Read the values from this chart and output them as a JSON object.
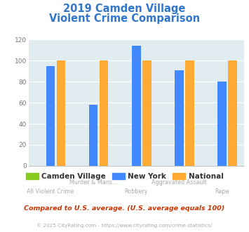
{
  "title_line1": "2019 Camden Village",
  "title_line2": "Violent Crime Comparison",
  "title_color": "#3377cc",
  "categories": [
    "All Violent Crime",
    "Murder & Mans...",
    "Robbery",
    "Aggravated Assault",
    "Rape"
  ],
  "camden_village": [
    0,
    0,
    0,
    0,
    0
  ],
  "new_york": [
    95,
    58,
    114,
    91,
    80
  ],
  "national": [
    100,
    100,
    100,
    100,
    100
  ],
  "bar_color_camden": "#88cc22",
  "bar_color_ny": "#4488ff",
  "bar_color_national": "#ffaa33",
  "ylim": [
    0,
    120
  ],
  "yticks": [
    0,
    20,
    40,
    60,
    80,
    100,
    120
  ],
  "legend_labels": [
    "Camden Village",
    "New York",
    "National"
  ],
  "footnote1": "Compared to U.S. average. (U.S. average equals 100)",
  "footnote2": "© 2025 CityRating.com - https://www.cityrating.com/crime-statistics/",
  "footnote1_color": "#cc3300",
  "footnote2_color": "#aaaaaa",
  "chart_bg_color": "#e0ecf0",
  "fig_bg_color": "#ffffff",
  "label_top": [
    "",
    "Murder & Mans...",
    "",
    "Aggravated Assault",
    ""
  ],
  "label_bot": [
    "All Violent Crime",
    "",
    "Robbery",
    "",
    "Rape"
  ],
  "label_color": "#aaaaaa"
}
